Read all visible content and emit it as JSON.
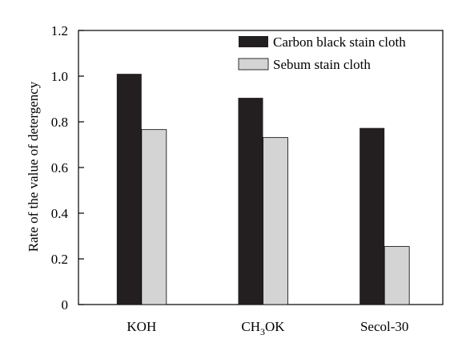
{
  "chart_data": {
    "type": "bar",
    "categories": [
      "KOH",
      "CH3OK",
      "Secol-30"
    ],
    "category_labels": [
      {
        "main": "KOH",
        "sub": "",
        "rest": ""
      },
      {
        "main": "CH",
        "sub": "3",
        "rest": "OK"
      },
      {
        "main": "Secol-30",
        "sub": "",
        "rest": ""
      }
    ],
    "series": [
      {
        "name": "Carbon black stain cloth",
        "values": [
          1.01,
          0.905,
          0.773
        ],
        "color": "#231f20"
      },
      {
        "name": "Sebum stain cloth",
        "values": [
          0.766,
          0.731,
          0.254
        ],
        "color": "#d4d4d4"
      }
    ],
    "xlabel": "",
    "ylabel": "Rate of the value of detergency",
    "ylim": [
      0,
      1.2
    ],
    "yticks": [
      0,
      0.2,
      0.4,
      0.6,
      0.8,
      1.0,
      1.2
    ],
    "ytick_labels": [
      "0",
      "0.2",
      "0.4",
      "0.6",
      "0.8",
      "1.0",
      "1.2"
    ],
    "grid": false,
    "legend_position": "top-right"
  }
}
